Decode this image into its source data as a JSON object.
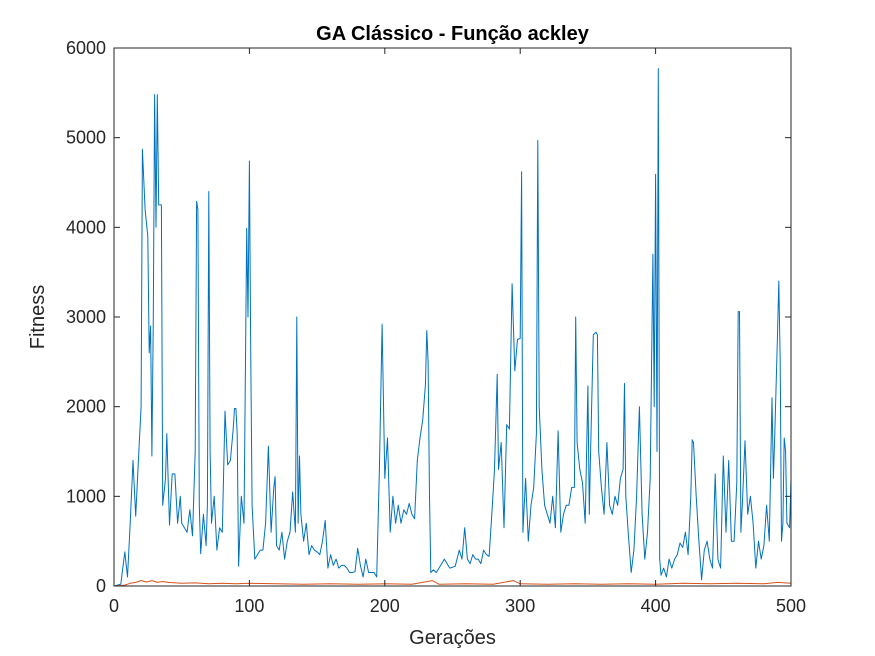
{
  "chart_data": {
    "type": "line",
    "title": "GA Clássico - Função ackley",
    "xlabel": "Gerações",
    "ylabel": "Fitness",
    "xlim": [
      0,
      500
    ],
    "ylim": [
      0,
      6000
    ],
    "xticks": [
      "0",
      "100",
      "200",
      "300",
      "400",
      "500"
    ],
    "yticks": [
      "0",
      "1000",
      "2000",
      "3000",
      "4000",
      "5000",
      "6000"
    ],
    "grid": false,
    "legend": "none",
    "series": [
      {
        "color": "#0072BD",
        "points": [
          [
            0,
            0
          ],
          [
            5,
            20
          ],
          [
            8,
            380
          ],
          [
            10,
            100
          ],
          [
            12,
            700
          ],
          [
            14,
            1400
          ],
          [
            16,
            780
          ],
          [
            18,
            1400
          ],
          [
            20,
            2000
          ],
          [
            21,
            4870
          ],
          [
            23,
            4200
          ],
          [
            25,
            3900
          ],
          [
            26,
            2600
          ],
          [
            27,
            2900
          ],
          [
            28,
            1450
          ],
          [
            29,
            3000
          ],
          [
            30,
            5480
          ],
          [
            31,
            4000
          ],
          [
            32,
            5480
          ],
          [
            33,
            4250
          ],
          [
            35,
            4250
          ],
          [
            36,
            900
          ],
          [
            38,
            1200
          ],
          [
            39,
            1700
          ],
          [
            41,
            680
          ],
          [
            43,
            1250
          ],
          [
            45,
            1250
          ],
          [
            47,
            700
          ],
          [
            49,
            1000
          ],
          [
            50,
            700
          ],
          [
            52,
            650
          ],
          [
            54,
            600
          ],
          [
            56,
            850
          ],
          [
            58,
            560
          ],
          [
            60,
            1500
          ],
          [
            61,
            4290
          ],
          [
            62,
            4200
          ],
          [
            63,
            900
          ],
          [
            64,
            360
          ],
          [
            66,
            800
          ],
          [
            68,
            450
          ],
          [
            69,
            900
          ],
          [
            70,
            4400
          ],
          [
            71,
            1500
          ],
          [
            72,
            700
          ],
          [
            74,
            1000
          ],
          [
            76,
            400
          ],
          [
            78,
            650
          ],
          [
            80,
            600
          ],
          [
            82,
            1950
          ],
          [
            84,
            1350
          ],
          [
            86,
            1400
          ],
          [
            88,
            1750
          ],
          [
            89,
            1980
          ],
          [
            90,
            1980
          ],
          [
            91,
            1700
          ],
          [
            92,
            220
          ],
          [
            94,
            1000
          ],
          [
            96,
            700
          ],
          [
            98,
            3990
          ],
          [
            99,
            3000
          ],
          [
            100,
            4740
          ],
          [
            101,
            2500
          ],
          [
            102,
            900
          ],
          [
            104,
            300
          ],
          [
            106,
            350
          ],
          [
            108,
            400
          ],
          [
            110,
            400
          ],
          [
            112,
            700
          ],
          [
            114,
            1560
          ],
          [
            116,
            600
          ],
          [
            118,
            1100
          ],
          [
            119,
            1220
          ],
          [
            120,
            450
          ],
          [
            122,
            400
          ],
          [
            124,
            600
          ],
          [
            126,
            300
          ],
          [
            128,
            500
          ],
          [
            130,
            600
          ],
          [
            132,
            1050
          ],
          [
            134,
            600
          ],
          [
            135,
            3000
          ],
          [
            136,
            700
          ],
          [
            137,
            1450
          ],
          [
            138,
            800
          ],
          [
            140,
            500
          ],
          [
            142,
            700
          ],
          [
            144,
            350
          ],
          [
            146,
            450
          ],
          [
            148,
            400
          ],
          [
            150,
            380
          ],
          [
            152,
            350
          ],
          [
            154,
            500
          ],
          [
            156,
            730
          ],
          [
            158,
            200
          ],
          [
            160,
            350
          ],
          [
            162,
            230
          ],
          [
            164,
            300
          ],
          [
            166,
            200
          ],
          [
            168,
            230
          ],
          [
            170,
            230
          ],
          [
            172,
            200
          ],
          [
            174,
            150
          ],
          [
            176,
            150
          ],
          [
            178,
            160
          ],
          [
            180,
            420
          ],
          [
            182,
            230
          ],
          [
            184,
            100
          ],
          [
            186,
            300
          ],
          [
            188,
            150
          ],
          [
            190,
            150
          ],
          [
            192,
            150
          ],
          [
            194,
            100
          ],
          [
            196,
            1300
          ],
          [
            198,
            2920
          ],
          [
            199,
            2100
          ],
          [
            200,
            1200
          ],
          [
            202,
            1650
          ],
          [
            204,
            600
          ],
          [
            206,
            1000
          ],
          [
            208,
            700
          ],
          [
            210,
            900
          ],
          [
            212,
            700
          ],
          [
            214,
            850
          ],
          [
            216,
            800
          ],
          [
            218,
            920
          ],
          [
            220,
            800
          ],
          [
            222,
            750
          ],
          [
            224,
            1400
          ],
          [
            226,
            1650
          ],
          [
            228,
            1850
          ],
          [
            230,
            2240
          ],
          [
            231,
            2850
          ],
          [
            232,
            2500
          ],
          [
            233,
            1000
          ],
          [
            234,
            150
          ],
          [
            236,
            180
          ],
          [
            238,
            150
          ],
          [
            240,
            200
          ],
          [
            244,
            300
          ],
          [
            248,
            200
          ],
          [
            252,
            220
          ],
          [
            255,
            400
          ],
          [
            257,
            300
          ],
          [
            259,
            650
          ],
          [
            261,
            300
          ],
          [
            263,
            250
          ],
          [
            265,
            350
          ],
          [
            267,
            300
          ],
          [
            269,
            300
          ],
          [
            271,
            250
          ],
          [
            273,
            400
          ],
          [
            275,
            350
          ],
          [
            277,
            330
          ],
          [
            279,
            800
          ],
          [
            281,
            1300
          ],
          [
            283,
            2360
          ],
          [
            284,
            1300
          ],
          [
            286,
            1600
          ],
          [
            288,
            650
          ],
          [
            290,
            1800
          ],
          [
            292,
            1750
          ],
          [
            294,
            3370
          ],
          [
            296,
            2400
          ],
          [
            298,
            2750
          ],
          [
            300,
            2760
          ],
          [
            301,
            4620
          ],
          [
            302,
            600
          ],
          [
            304,
            1200
          ],
          [
            306,
            500
          ],
          [
            308,
            900
          ],
          [
            310,
            1100
          ],
          [
            312,
            1700
          ],
          [
            313,
            4970
          ],
          [
            314,
            2000
          ],
          [
            316,
            1300
          ],
          [
            318,
            900
          ],
          [
            320,
            800
          ],
          [
            322,
            700
          ],
          [
            324,
            1000
          ],
          [
            326,
            650
          ],
          [
            328,
            1730
          ],
          [
            330,
            600
          ],
          [
            332,
            800
          ],
          [
            334,
            900
          ],
          [
            336,
            900
          ],
          [
            338,
            1100
          ],
          [
            340,
            1100
          ],
          [
            341,
            3000
          ],
          [
            342,
            1600
          ],
          [
            344,
            1300
          ],
          [
            346,
            1150
          ],
          [
            348,
            700
          ],
          [
            350,
            2230
          ],
          [
            351,
            800
          ],
          [
            352,
            1500
          ],
          [
            354,
            2800
          ],
          [
            356,
            2830
          ],
          [
            357,
            2800
          ],
          [
            358,
            1500
          ],
          [
            360,
            1100
          ],
          [
            362,
            800
          ],
          [
            364,
            1600
          ],
          [
            366,
            900
          ],
          [
            368,
            800
          ],
          [
            370,
            1000
          ],
          [
            372,
            900
          ],
          [
            374,
            1200
          ],
          [
            376,
            1300
          ],
          [
            377,
            2260
          ],
          [
            378,
            1000
          ],
          [
            380,
            550
          ],
          [
            382,
            150
          ],
          [
            384,
            400
          ],
          [
            386,
            1000
          ],
          [
            388,
            2000
          ],
          [
            390,
            800
          ],
          [
            392,
            300
          ],
          [
            394,
            600
          ],
          [
            396,
            1200
          ],
          [
            398,
            3700
          ],
          [
            399,
            2000
          ],
          [
            400,
            4590
          ],
          [
            401,
            1500
          ],
          [
            402,
            5770
          ],
          [
            403,
            300
          ],
          [
            404,
            120
          ],
          [
            406,
            200
          ],
          [
            408,
            100
          ],
          [
            410,
            300
          ],
          [
            412,
            200
          ],
          [
            414,
            300
          ],
          [
            416,
            350
          ],
          [
            418,
            480
          ],
          [
            420,
            430
          ],
          [
            422,
            600
          ],
          [
            424,
            350
          ],
          [
            426,
            1000
          ],
          [
            427,
            1630
          ],
          [
            428,
            1600
          ],
          [
            430,
            1000
          ],
          [
            432,
            500
          ],
          [
            434,
            70
          ],
          [
            436,
            400
          ],
          [
            438,
            500
          ],
          [
            440,
            300
          ],
          [
            442,
            200
          ],
          [
            444,
            1250
          ],
          [
            446,
            300
          ],
          [
            448,
            200
          ],
          [
            450,
            1450
          ],
          [
            452,
            600
          ],
          [
            454,
            1400
          ],
          [
            456,
            500
          ],
          [
            458,
            500
          ],
          [
            460,
            1150
          ],
          [
            461,
            3060
          ],
          [
            462,
            3060
          ],
          [
            463,
            600
          ],
          [
            464,
            900
          ],
          [
            466,
            1620
          ],
          [
            468,
            800
          ],
          [
            470,
            1000
          ],
          [
            472,
            700
          ],
          [
            474,
            200
          ],
          [
            476,
            500
          ],
          [
            478,
            300
          ],
          [
            480,
            450
          ],
          [
            482,
            900
          ],
          [
            484,
            500
          ],
          [
            486,
            2100
          ],
          [
            487,
            1200
          ],
          [
            488,
            1700
          ],
          [
            490,
            2800
          ],
          [
            491,
            3400
          ],
          [
            492,
            2500
          ],
          [
            493,
            500
          ],
          [
            494,
            700
          ],
          [
            495,
            1650
          ],
          [
            496,
            1500
          ],
          [
            497,
            700
          ],
          [
            499,
            650
          ],
          [
            500,
            1200
          ]
        ]
      },
      {
        "color": "#D95319",
        "points": [
          [
            0,
            0
          ],
          [
            8,
            10
          ],
          [
            12,
            30
          ],
          [
            16,
            40
          ],
          [
            20,
            60
          ],
          [
            24,
            45
          ],
          [
            28,
            60
          ],
          [
            32,
            40
          ],
          [
            36,
            50
          ],
          [
            40,
            40
          ],
          [
            50,
            30
          ],
          [
            60,
            35
          ],
          [
            70,
            25
          ],
          [
            80,
            30
          ],
          [
            90,
            25
          ],
          [
            100,
            30
          ],
          [
            120,
            25
          ],
          [
            140,
            20
          ],
          [
            160,
            25
          ],
          [
            180,
            20
          ],
          [
            200,
            25
          ],
          [
            220,
            20
          ],
          [
            235,
            60
          ],
          [
            240,
            20
          ],
          [
            260,
            25
          ],
          [
            280,
            20
          ],
          [
            295,
            60
          ],
          [
            300,
            25
          ],
          [
            320,
            20
          ],
          [
            340,
            25
          ],
          [
            360,
            20
          ],
          [
            380,
            25
          ],
          [
            400,
            20
          ],
          [
            420,
            30
          ],
          [
            440,
            25
          ],
          [
            460,
            30
          ],
          [
            480,
            25
          ],
          [
            490,
            40
          ],
          [
            500,
            30
          ]
        ]
      }
    ]
  }
}
